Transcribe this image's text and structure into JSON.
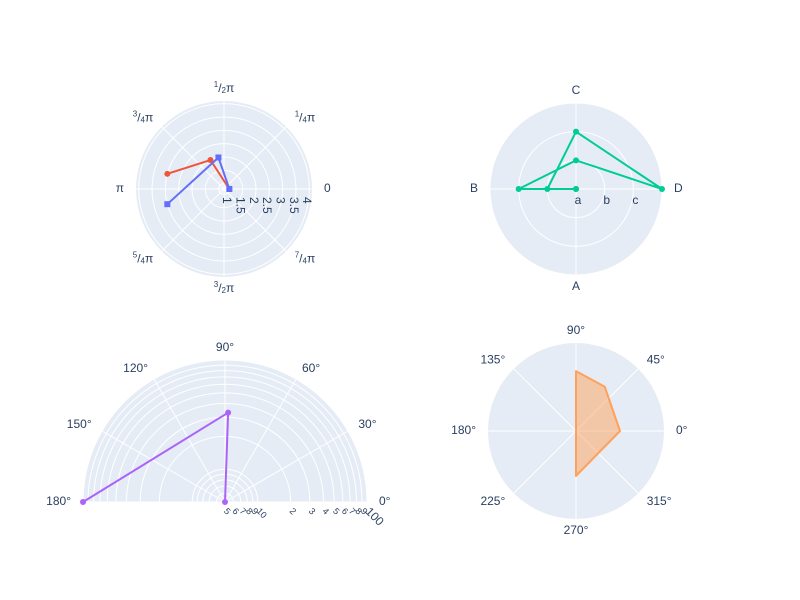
{
  "colors": {
    "bg": "#E5ECF6",
    "grid": "#ffffff",
    "text": "#2a3f5f",
    "red": "#EF553B",
    "blue": "#636EFA",
    "green": "#00CC96",
    "purple": "#AB63FA",
    "orange": "#FFA15A"
  },
  "chart_data": [
    {
      "type": "line",
      "subplot": "top-left",
      "angular_unit": "radians",
      "angular_tick_labels": [
        {
          "angle_deg": 0,
          "label": "0"
        },
        {
          "angle_deg": 45,
          "label": "1/4π",
          "num": "1",
          "den": "4",
          "sym": "π"
        },
        {
          "angle_deg": 90,
          "label": "1/2π",
          "num": "1",
          "den": "2",
          "sym": "π"
        },
        {
          "angle_deg": 135,
          "label": "3/4π",
          "num": "3",
          "den": "4",
          "sym": "π"
        },
        {
          "angle_deg": 180,
          "label": "π"
        },
        {
          "angle_deg": 225,
          "label": "5/4π",
          "num": "5",
          "den": "4",
          "sym": "π"
        },
        {
          "angle_deg": 270,
          "label": "3/2π",
          "num": "3",
          "den": "2",
          "sym": "π"
        },
        {
          "angle_deg": 315,
          "label": "7/4π",
          "num": "7",
          "den": "4",
          "sym": "π"
        }
      ],
      "radial_range": [
        0.8,
        4.1
      ],
      "radial_ticks": [
        "1",
        "1.5",
        "2",
        "2.5",
        "3",
        "3.5",
        "4"
      ],
      "series": [
        {
          "color_key": "red",
          "marker": "circle",
          "points": [
            {
              "r": 1,
              "theta_deg": 0
            },
            {
              "r": 2,
              "theta_deg": 115
            },
            {
              "r": 3,
              "theta_deg": 165
            }
          ]
        },
        {
          "color_key": "blue",
          "marker": "square",
          "points": [
            {
              "r": 1,
              "theta_deg": 0
            },
            {
              "r": 2,
              "theta_deg": 100
            },
            {
              "r": 3,
              "theta_deg": 195
            }
          ]
        }
      ]
    },
    {
      "type": "line",
      "subplot": "top-right",
      "angular_unit": "category",
      "angular_tick_labels": [
        {
          "angle_deg": 0,
          "label": "D"
        },
        {
          "angle_deg": 90,
          "label": "C"
        },
        {
          "angle_deg": 180,
          "label": "B"
        },
        {
          "angle_deg": 270,
          "label": "A"
        }
      ],
      "radial_type": "category",
      "radial_ticks": [
        "a",
        "b",
        "c"
      ],
      "series": [
        {
          "color_key": "green",
          "marker": "circle",
          "points": [
            {
              "r": "a",
              "theta": "A"
            },
            {
              "r": "b",
              "theta": "B"
            },
            {
              "r": "c",
              "theta": "C"
            },
            {
              "r": "d",
              "theta": "D"
            },
            {
              "r": "b",
              "theta": "C"
            },
            {
              "r": "c",
              "theta": "B"
            },
            {
              "r": "a",
              "theta": "C"
            }
          ]
        }
      ]
    },
    {
      "type": "line",
      "subplot": "bottom-left",
      "sector": [
        0,
        180
      ],
      "radial_type": "log",
      "radial_range_log10": [
        0.7,
        2.0
      ],
      "angular_tick_labels": [
        {
          "angle_deg": 0,
          "label": "0°"
        },
        {
          "angle_deg": 30,
          "label": "30°"
        },
        {
          "angle_deg": 60,
          "label": "60°"
        },
        {
          "angle_deg": 90,
          "label": "90°"
        },
        {
          "angle_deg": 120,
          "label": "120°"
        },
        {
          "angle_deg": 150,
          "label": "150°"
        },
        {
          "angle_deg": 180,
          "label": "180°"
        }
      ],
      "radial_ticks": [
        {
          "value": 5,
          "label": "5"
        },
        {
          "value": 6,
          "label": "6"
        },
        {
          "value": 7,
          "label": "7"
        },
        {
          "value": 8,
          "label": "8"
        },
        {
          "value": 9,
          "label": "9"
        },
        {
          "value": 10,
          "label": "10"
        },
        {
          "value": 20,
          "label": "2"
        },
        {
          "value": 30,
          "label": "3"
        },
        {
          "value": 40,
          "label": "4"
        },
        {
          "value": 50,
          "label": "5"
        },
        {
          "value": 60,
          "label": "6"
        },
        {
          "value": 70,
          "label": "7"
        },
        {
          "value": 80,
          "label": "8"
        },
        {
          "value": 90,
          "label": "9"
        },
        {
          "value": 100,
          "label": "100"
        }
      ],
      "series": [
        {
          "color_key": "purple",
          "marker": "circle",
          "points": [
            {
              "r": 5,
              "theta_deg": 1
            },
            {
              "r": 33,
              "theta_deg": 88
            },
            {
              "r": 100,
              "theta_deg": 180
            }
          ]
        }
      ]
    },
    {
      "type": "area",
      "subplot": "bottom-right",
      "angular_tick_labels": [
        {
          "angle_deg": 0,
          "label": "0°"
        },
        {
          "angle_deg": 45,
          "label": "45°"
        },
        {
          "angle_deg": 90,
          "label": "90°"
        },
        {
          "angle_deg": 135,
          "label": "135°"
        },
        {
          "angle_deg": 180,
          "label": "180°"
        },
        {
          "angle_deg": 225,
          "label": "225°"
        },
        {
          "angle_deg": 270,
          "label": "270°"
        },
        {
          "angle_deg": 315,
          "label": "315°"
        }
      ],
      "radial_visible": false,
      "radial_range": [
        0,
        1
      ],
      "series": [
        {
          "color_key": "orange",
          "fill": "toself",
          "points": [
            {
              "r": 0,
              "theta_deg": 0
            },
            {
              "r": 0.68,
              "theta_deg": 90
            },
            {
              "r": 0.6,
              "theta_deg": 57
            },
            {
              "r": 0.5,
              "theta_deg": 0
            },
            {
              "r": 0.51,
              "theta_deg": 270
            },
            {
              "r": 0,
              "theta_deg": 0
            }
          ]
        }
      ]
    }
  ]
}
